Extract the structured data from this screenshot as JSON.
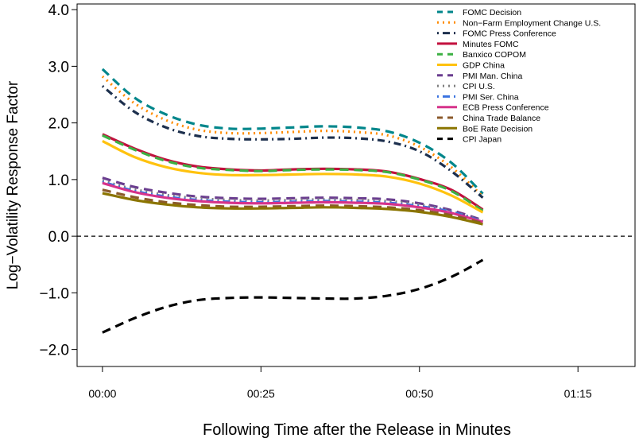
{
  "chart_data": {
    "type": "line",
    "title": "",
    "xlabel": "Following Time after the Release in Minutes",
    "ylabel": "Log−Volatility Response Factor",
    "xlim": [
      -4,
      84
    ],
    "ylim": [
      -2.3,
      4.1
    ],
    "x_ticks": [
      0,
      25,
      50,
      75
    ],
    "x_tick_labels": [
      "00:00",
      "00:25",
      "00:50",
      "01:15"
    ],
    "y_ticks": [
      -2.0,
      -1.0,
      0.0,
      1.0,
      2.0,
      3.0,
      4.0
    ],
    "y_tick_labels": [
      "−2.0",
      "−1.0",
      "0.0",
      "1.0",
      "2.0",
      "3.0",
      "4.0"
    ],
    "reference_line": {
      "y": 0.0,
      "style": "dashed"
    },
    "legend_position": "top-right",
    "x": [
      0,
      5,
      10,
      15,
      20,
      25,
      30,
      35,
      40,
      45,
      50,
      55,
      60
    ],
    "series": [
      {
        "name": "FOMC Decision",
        "color": "#00868B",
        "dash": "dashed",
        "values": [
          2.95,
          2.45,
          2.15,
          1.97,
          1.9,
          1.9,
          1.92,
          1.94,
          1.92,
          1.85,
          1.65,
          1.3,
          0.75
        ]
      },
      {
        "name": "Non−Farm Employment Change U.S.",
        "color": "#FF8C00",
        "dash": "dotted",
        "values": [
          2.82,
          2.35,
          2.05,
          1.88,
          1.82,
          1.82,
          1.84,
          1.86,
          1.84,
          1.78,
          1.58,
          1.22,
          0.7
        ]
      },
      {
        "name": "FOMC Press Conference",
        "color": "#1C2F4D",
        "dash": "dotdash",
        "values": [
          2.65,
          2.2,
          1.92,
          1.77,
          1.72,
          1.71,
          1.72,
          1.74,
          1.73,
          1.67,
          1.5,
          1.15,
          0.68
        ]
      },
      {
        "name": "Minutes FOMC",
        "color": "#C2103E",
        "dash": "solid",
        "values": [
          1.8,
          1.55,
          1.35,
          1.23,
          1.18,
          1.16,
          1.18,
          1.19,
          1.18,
          1.14,
          1.01,
          0.82,
          0.47
        ]
      },
      {
        "name": "Banxico COPOM",
        "color": "#3CB043",
        "dash": "dashed",
        "values": [
          1.78,
          1.53,
          1.33,
          1.21,
          1.17,
          1.15,
          1.17,
          1.18,
          1.17,
          1.13,
          1.0,
          0.8,
          0.45
        ]
      },
      {
        "name": "GDP China",
        "color": "#FFC20E",
        "dash": "solid",
        "values": [
          1.68,
          1.4,
          1.22,
          1.12,
          1.08,
          1.08,
          1.09,
          1.1,
          1.09,
          1.05,
          0.93,
          0.72,
          0.42
        ]
      },
      {
        "name": "PMI Man. China",
        "color": "#6A3D8F",
        "dash": "dashed",
        "values": [
          1.03,
          0.87,
          0.77,
          0.7,
          0.67,
          0.66,
          0.67,
          0.68,
          0.67,
          0.65,
          0.58,
          0.46,
          0.28
        ]
      },
      {
        "name": "CPI U.S.",
        "color": "#808080",
        "dash": "dotted",
        "values": [
          0.98,
          0.83,
          0.73,
          0.67,
          0.64,
          0.63,
          0.64,
          0.65,
          0.64,
          0.62,
          0.56,
          0.44,
          0.27
        ]
      },
      {
        "name": "PMI Ser. China",
        "color": "#3B73E0",
        "dash": "dotdash",
        "values": [
          0.96,
          0.8,
          0.7,
          0.64,
          0.61,
          0.6,
          0.61,
          0.62,
          0.61,
          0.59,
          0.53,
          0.43,
          0.26
        ]
      },
      {
        "name": "ECB Press Conference",
        "color": "#D6338A",
        "dash": "solid",
        "values": [
          0.94,
          0.78,
          0.68,
          0.62,
          0.59,
          0.58,
          0.59,
          0.6,
          0.59,
          0.57,
          0.51,
          0.41,
          0.25
        ]
      },
      {
        "name": "China Trade Balance",
        "color": "#8B5A2B",
        "dash": "dashed",
        "values": [
          0.82,
          0.69,
          0.6,
          0.55,
          0.52,
          0.52,
          0.53,
          0.54,
          0.53,
          0.51,
          0.46,
          0.37,
          0.23
        ]
      },
      {
        "name": "BoE Rate Decision",
        "color": "#8B7500",
        "dash": "solid",
        "values": [
          0.76,
          0.64,
          0.56,
          0.51,
          0.49,
          0.49,
          0.5,
          0.51,
          0.5,
          0.48,
          0.43,
          0.34,
          0.21
        ]
      },
      {
        "name": "CPI Japan",
        "color": "#000000",
        "dash": "dashed",
        "values": [
          -1.7,
          -1.45,
          -1.25,
          -1.13,
          -1.09,
          -1.08,
          -1.09,
          -1.1,
          -1.1,
          -1.05,
          -0.93,
          -0.72,
          -0.42
        ]
      }
    ]
  }
}
